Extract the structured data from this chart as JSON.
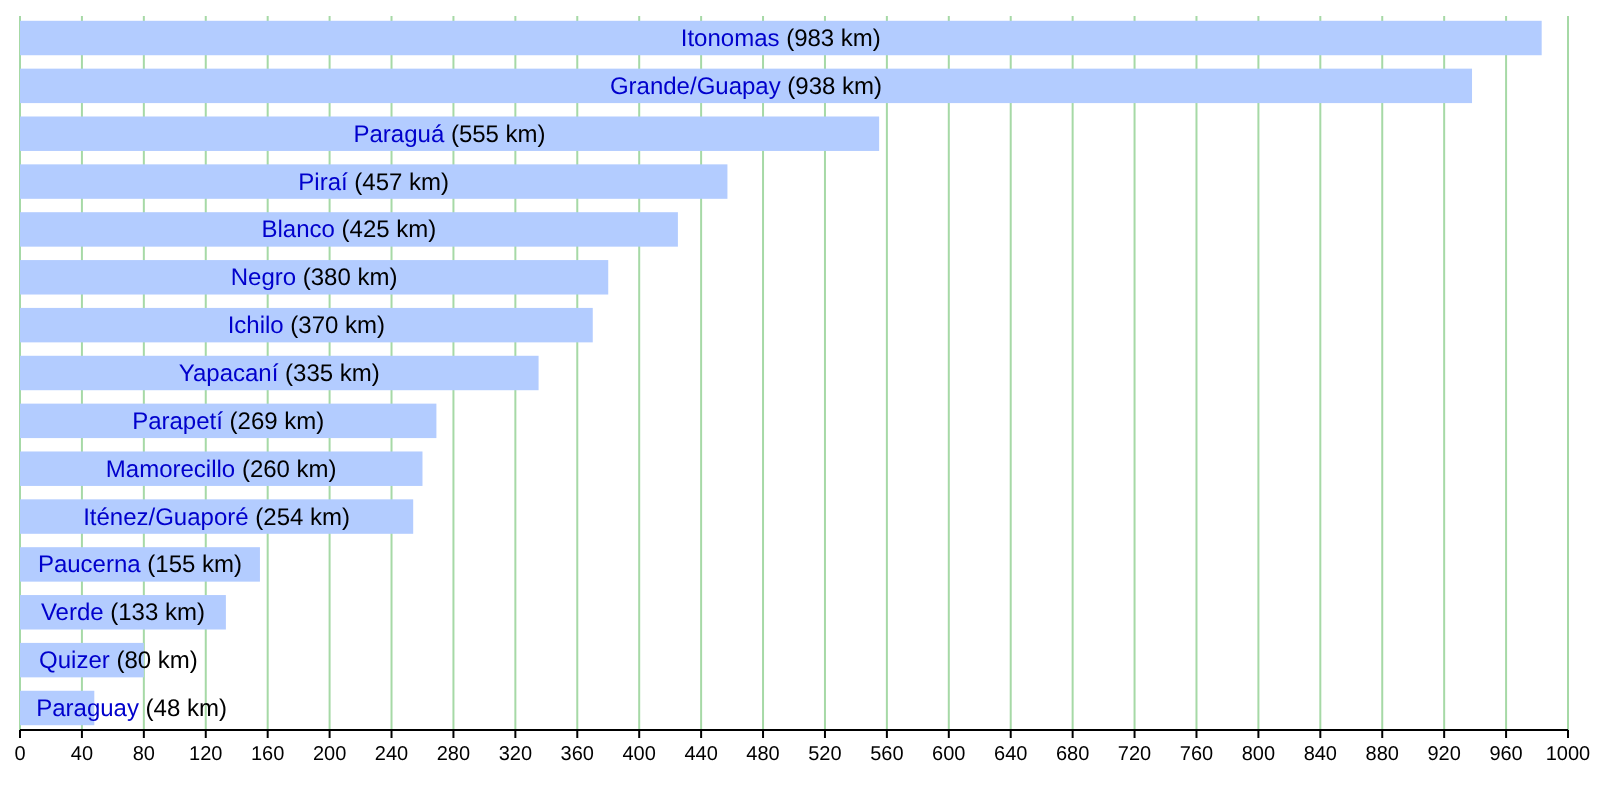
{
  "chart_data": {
    "type": "bar",
    "orientation": "horizontal",
    "categories": [
      "Itonomas",
      "Grande/Guapay",
      "Paraguá",
      "Piraí",
      "Blanco",
      "Negro",
      "Ichilo",
      "Yapacaní",
      "Parapetí",
      "Mamorecillo",
      "Iténez/Guaporé",
      "Paucerna",
      "Verde",
      "Quizer",
      "Paraguay"
    ],
    "values": [
      983,
      938,
      555,
      457,
      425,
      380,
      370,
      335,
      269,
      260,
      254,
      155,
      133,
      80,
      48
    ],
    "value_labels": [
      "(983 km)",
      "(938 km)",
      "(555 km)",
      "(457 km)",
      "(425 km)",
      "(380 km)",
      "(370 km)",
      "(335 km)",
      "(269 km)",
      "(260 km)",
      "(254 km)",
      "(155 km)",
      "(133 km)",
      "(80 km)",
      "(48 km)"
    ],
    "color": "#b3ccff",
    "xlim": [
      0,
      1000
    ],
    "xticks": [
      0,
      40,
      80,
      120,
      160,
      200,
      240,
      280,
      320,
      360,
      400,
      440,
      480,
      520,
      560,
      600,
      640,
      680,
      720,
      760,
      800,
      840,
      880,
      920,
      960,
      1000
    ],
    "grid": "x"
  }
}
